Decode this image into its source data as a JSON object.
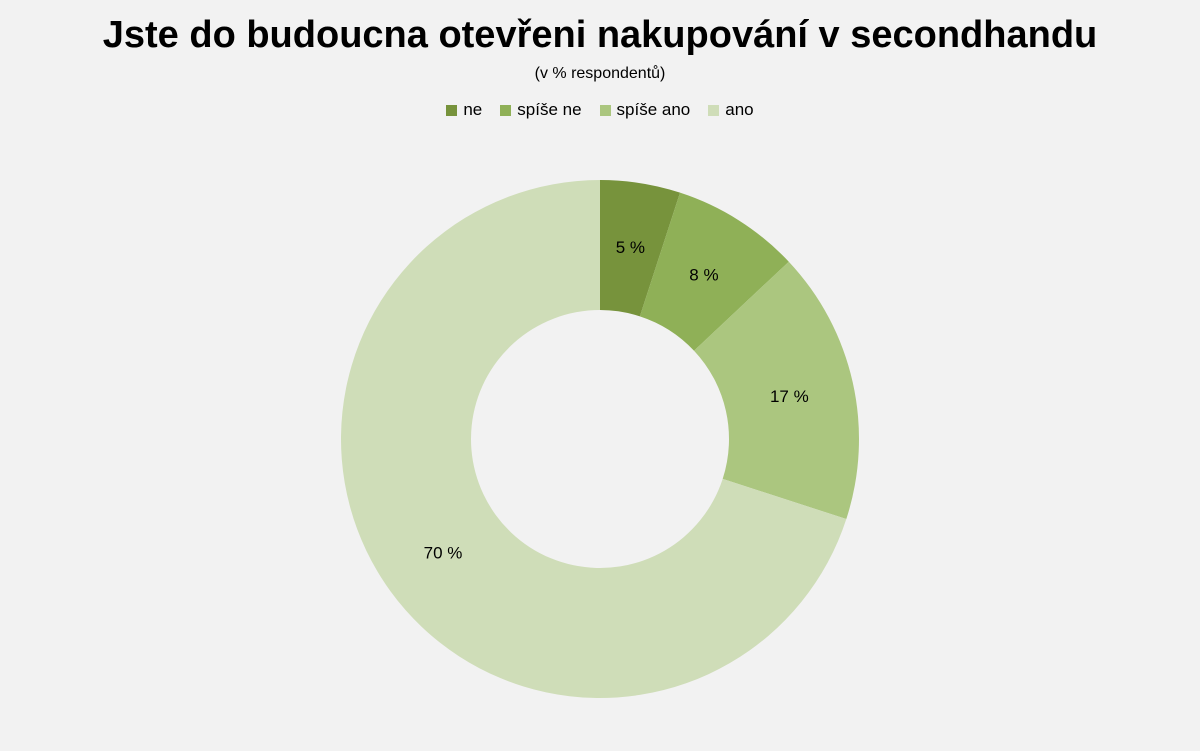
{
  "chart_data": {
    "type": "pie",
    "donut": true,
    "title": "Jste do budoucna otevřeni nakupování v secondhandu",
    "subtitle": "(v % respondentů)",
    "legend_position": "top",
    "categories": [
      "ne",
      "spíše ne",
      "spíše ano",
      "ano"
    ],
    "values": [
      5,
      8,
      17,
      70
    ],
    "data_labels": [
      "5 %",
      "8 %",
      "17 %",
      "70 %"
    ],
    "colors": [
      "#77933c",
      "#8fb057",
      "#abc67f",
      "#cfddb8"
    ]
  }
}
